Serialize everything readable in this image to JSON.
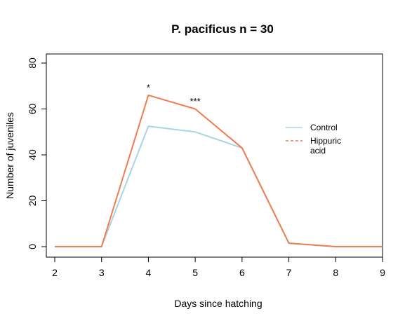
{
  "chart_data": {
    "type": "line",
    "title": "P. pacificus n = 30",
    "xlabel": "Days since hatching",
    "ylabel": "Number of juveniles",
    "x": [
      2,
      3,
      4,
      5,
      6,
      7,
      8,
      9
    ],
    "xticks": [
      "2",
      "3",
      "4",
      "5",
      "6",
      "7",
      "8",
      "9"
    ],
    "yticks": [
      "0",
      "20",
      "40",
      "60",
      "80"
    ],
    "xlim": [
      2,
      9
    ],
    "ylim": [
      0,
      80
    ],
    "grid": false,
    "legend_position": "right",
    "series": [
      {
        "name": "Control",
        "color": "#a8d4e6",
        "values": [
          0,
          0,
          52.5,
          50,
          43,
          1.5,
          0,
          0
        ]
      },
      {
        "name": "Hippuric acid",
        "legend_lines": [
          "Hippuric",
          "acid"
        ],
        "color": "#f07c50",
        "values": [
          0,
          0,
          66,
          60,
          43,
          1.5,
          0,
          0
        ]
      }
    ],
    "annotations": [
      {
        "text": "*",
        "x": 4,
        "y": 68
      },
      {
        "text": "***",
        "x": 5,
        "y": 62
      }
    ]
  }
}
